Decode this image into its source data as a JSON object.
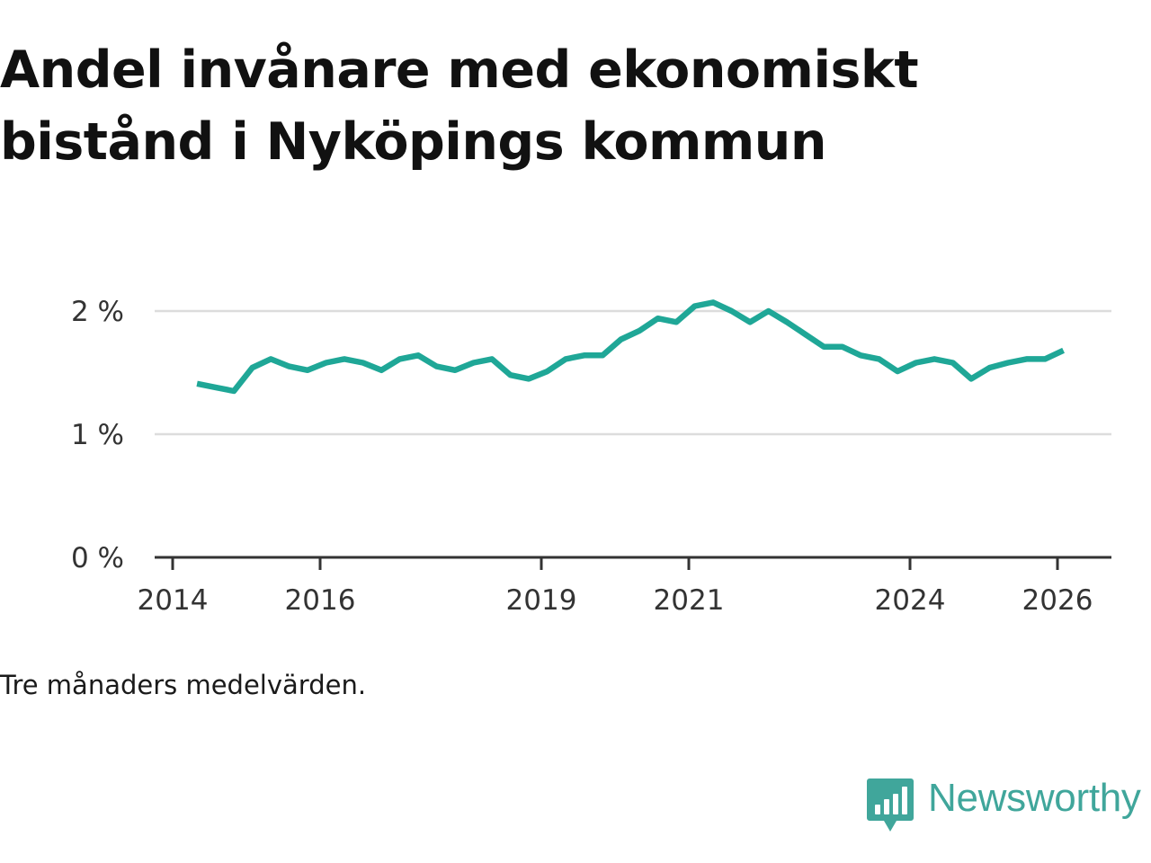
{
  "title": "Andel invånare med ekonomiskt bistånd i Nyköpings kommun",
  "caption": "Tre månaders medelvärden.",
  "brand": {
    "name": "Newsworthy",
    "icon": "newsworthy-logo-icon",
    "color": "#40a69b"
  },
  "chart_data": {
    "type": "line",
    "title": "Andel invånare med ekonomiskt bistånd i Nyköpings kommun",
    "xlabel": "",
    "ylabel": "",
    "xlim": [
      2013.95,
      2027.3
    ],
    "ylim": [
      0,
      2.2
    ],
    "grid": true,
    "line_color": "#1fa797",
    "x_ticks": [
      {
        "value": 2014,
        "label": "2014"
      },
      {
        "value": 2016,
        "label": "2016"
      },
      {
        "value": 2019,
        "label": "2019"
      },
      {
        "value": 2021,
        "label": "2021"
      },
      {
        "value": 2024,
        "label": "2024"
      },
      {
        "value": 2026,
        "label": "2026"
      }
    ],
    "y_ticks": [
      {
        "value": 0,
        "label": "0 %"
      },
      {
        "value": 1,
        "label": "1 %"
      },
      {
        "value": 2,
        "label": "2 %"
      }
    ],
    "series": [
      {
        "name": "Andel invånare med ekonomiskt bistånd",
        "x": [
          2014.33,
          2014.58,
          2014.83,
          2015.08,
          2015.33,
          2015.58,
          2015.83,
          2016.08,
          2016.33,
          2016.58,
          2016.83,
          2017.08,
          2017.33,
          2017.58,
          2017.83,
          2018.08,
          2018.33,
          2018.58,
          2018.83,
          2019.08,
          2019.33,
          2019.58,
          2019.83,
          2020.08,
          2020.33,
          2020.58,
          2020.83,
          2021.08,
          2021.33,
          2021.58,
          2021.83,
          2022.08,
          2022.33,
          2022.58,
          2022.83,
          2023.08,
          2023.33,
          2023.58,
          2023.83,
          2024.08,
          2024.33,
          2024.58,
          2024.83,
          2025.08,
          2025.33,
          2025.58,
          2025.83,
          2026.08
        ],
        "values": [
          1.41,
          1.38,
          1.35,
          1.54,
          1.61,
          1.55,
          1.52,
          1.58,
          1.61,
          1.58,
          1.52,
          1.61,
          1.64,
          1.55,
          1.52,
          1.58,
          1.61,
          1.48,
          1.45,
          1.51,
          1.61,
          1.64,
          1.64,
          1.77,
          1.84,
          1.94,
          1.91,
          2.04,
          2.07,
          2.0,
          1.91,
          2.0,
          1.91,
          1.81,
          1.71,
          1.71,
          1.64,
          1.61,
          1.51,
          1.58,
          1.61,
          1.58,
          1.45,
          1.54,
          1.58,
          1.61,
          1.61,
          1.68
        ]
      }
    ]
  }
}
